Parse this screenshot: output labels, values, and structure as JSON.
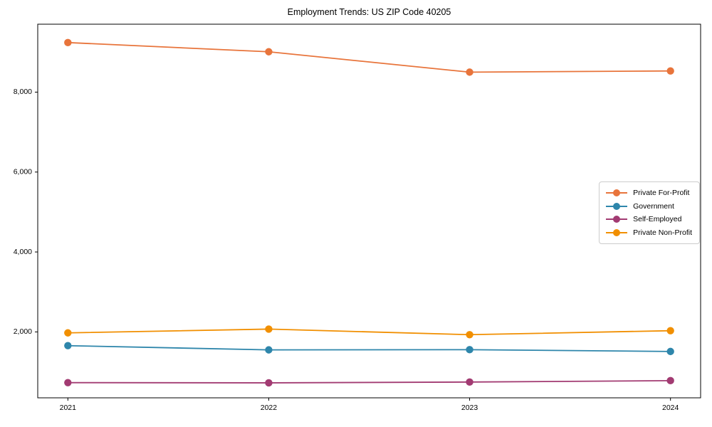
{
  "title": "Employment Trends: US ZIP Code 40205",
  "chart_data": {
    "type": "line",
    "title": "Employment Trends: US ZIP Code 40205",
    "xlabel": "",
    "ylabel": "",
    "x": [
      2021,
      2022,
      2023,
      2024
    ],
    "x_tick_labels": [
      "2021",
      "2022",
      "2023",
      "2024"
    ],
    "y_ticks": [
      {
        "value": 2000,
        "label": "2,000"
      },
      {
        "value": 4000,
        "label": "4,000"
      },
      {
        "value": 6000,
        "label": "6,000"
      },
      {
        "value": 8000,
        "label": "8,000"
      }
    ],
    "xlim": [
      2020.85,
      2024.15
    ],
    "ylim": [
      350,
      9700
    ],
    "grid": false,
    "legend_position": "right",
    "series": [
      {
        "name": "Private For-Profit",
        "color": "#E8743B",
        "values": [
          9240,
          9010,
          8500,
          8530
        ]
      },
      {
        "name": "Government",
        "color": "#2E86AB",
        "values": [
          1655,
          1550,
          1555,
          1510
        ]
      },
      {
        "name": "Self-Employed",
        "color": "#A23B72",
        "values": [
          730,
          725,
          745,
          780
        ]
      },
      {
        "name": "Private Non-Profit",
        "color": "#F18F01",
        "values": [
          1975,
          2070,
          1930,
          2030
        ]
      }
    ]
  }
}
